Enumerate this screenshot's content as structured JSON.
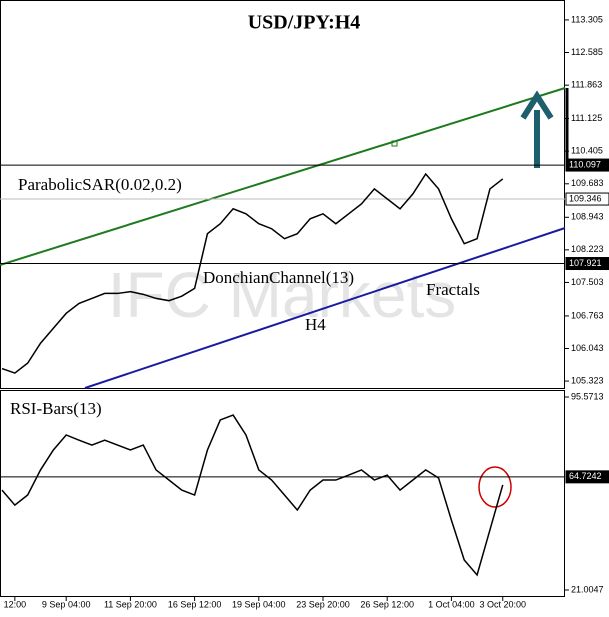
{
  "chart_data": [
    {
      "type": "line",
      "title": "USD/JPY:H4",
      "annotations": [
        "ParabolicSAR(0.02,0.2)",
        "DonchianChannel(13)",
        "H4",
        "Fractals"
      ],
      "watermark": "IFC Markets",
      "color": "#000000",
      "values": [
        105.6,
        105.5,
        105.72,
        106.16,
        106.49,
        106.82,
        107.04,
        107.15,
        107.26,
        107.26,
        107.3,
        107.24,
        107.15,
        107.1,
        107.2,
        107.37,
        108.58,
        108.8,
        109.13,
        109.02,
        108.8,
        108.69,
        108.47,
        108.58,
        108.91,
        109.02,
        108.8,
        109.02,
        109.24,
        109.57,
        109.35,
        109.13,
        109.46,
        109.9,
        109.57,
        108.91,
        108.36,
        108.47,
        109.57,
        109.79
      ],
      "ylim": [
        105.17,
        113.745
      ],
      "yticks": [
        105.323,
        106.043,
        106.763,
        107.503,
        108.223,
        108.943,
        109.683,
        110.405,
        111.125,
        111.863,
        112.585,
        113.305
      ],
      "levels": [
        110.097,
        109.346,
        107.921
      ]
    },
    {
      "type": "line",
      "title": "RSI-Bars(13)",
      "color": "#000000",
      "categories": [
        null,
        "12:00",
        null,
        null,
        null,
        "9 Sep 04:00",
        null,
        null,
        null,
        null,
        "11 Sep 20:00",
        null,
        null,
        null,
        null,
        "16 Sep 12:00",
        null,
        null,
        null,
        null,
        "19 Sep 04:00",
        null,
        null,
        null,
        null,
        "23 Sep 20:00",
        null,
        null,
        null,
        null,
        "26 Sep 12:00",
        null,
        null,
        null,
        null,
        "1 Oct 04:00",
        null,
        null,
        null,
        "3 Oct 20:00"
      ],
      "values": [
        59.6,
        53.8,
        57.7,
        67.4,
        75.1,
        80.9,
        78.9,
        77.0,
        78.9,
        77.0,
        75.1,
        77.0,
        67.4,
        63.5,
        59.6,
        57.7,
        75.1,
        86.7,
        88.6,
        80.9,
        67.4,
        63.5,
        57.7,
        51.9,
        59.6,
        63.5,
        63.5,
        65.4,
        67.4,
        63.5,
        65.4,
        59.6,
        63.5,
        67.4,
        64.3,
        48.0,
        32.6,
        26.8,
        44.2,
        61.6
      ],
      "ylim": [
        18.3,
        98.28
      ],
      "yticks": [
        21.0047,
        95.5713
      ],
      "levels": [
        64.7242
      ]
    }
  ]
}
